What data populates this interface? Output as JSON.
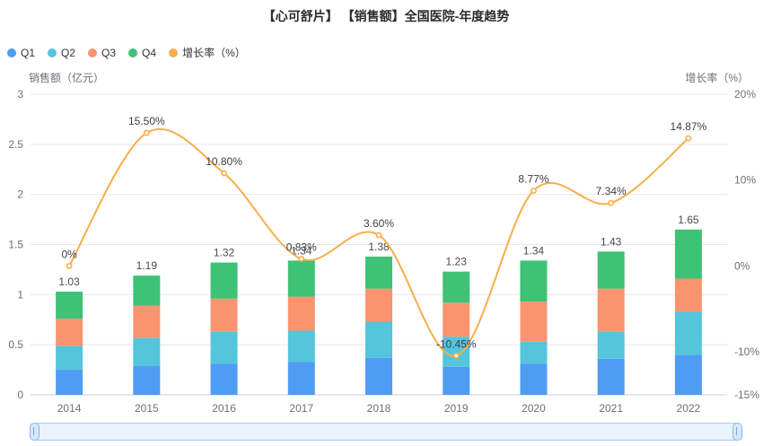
{
  "title": "【心可舒片】 【销售额】全国医院-年度趋势",
  "legend": [
    {
      "label": "Q1",
      "color": "#4F9CF4"
    },
    {
      "label": "Q2",
      "color": "#54C5DB"
    },
    {
      "label": "Q3",
      "color": "#F9946F"
    },
    {
      "label": "Q4",
      "color": "#3EC276"
    },
    {
      "label": "增长率（%）",
      "color": "#F8AE4A"
    }
  ],
  "left_axis": {
    "name": "销售额（亿元）",
    "min": 0,
    "max": 3,
    "ticks": [
      {
        "label": "3",
        "value": 3
      },
      {
        "label": "2.5",
        "value": 2.5
      },
      {
        "label": "2",
        "value": 2
      },
      {
        "label": "1.5",
        "value": 1.5
      },
      {
        "label": "1",
        "value": 1
      },
      {
        "label": "0.5",
        "value": 0.5
      },
      {
        "label": "0",
        "value": 0
      }
    ]
  },
  "right_axis": {
    "name": "增长率（%）",
    "min": -15,
    "max": 20,
    "ticks": [
      {
        "label": "20%",
        "value": 20
      },
      {
        "label": "10%",
        "value": 10
      },
      {
        "label": "0%",
        "value": 0
      },
      {
        "label": "-10%",
        "value": -10
      },
      {
        "label": "-15%",
        "value": -15
      }
    ]
  },
  "chart_data": {
    "type": "bar",
    "subtype": "stacked-bars-with-line",
    "categories": [
      "2014",
      "2015",
      "2016",
      "2017",
      "2018",
      "2019",
      "2020",
      "2021",
      "2022"
    ],
    "series": [
      {
        "name": "Q1",
        "type": "bar",
        "color": "#4F9CF4",
        "values": [
          0.25,
          0.29,
          0.31,
          0.33,
          0.37,
          0.28,
          0.31,
          0.36,
          0.4
        ]
      },
      {
        "name": "Q2",
        "type": "bar",
        "color": "#54C5DB",
        "values": [
          0.24,
          0.28,
          0.32,
          0.31,
          0.36,
          0.3,
          0.22,
          0.27,
          0.43
        ]
      },
      {
        "name": "Q3",
        "type": "bar",
        "color": "#F9946F",
        "values": [
          0.27,
          0.32,
          0.33,
          0.34,
          0.33,
          0.34,
          0.4,
          0.43,
          0.33
        ]
      },
      {
        "name": "Q4",
        "type": "bar",
        "color": "#3EC276",
        "values": [
          0.27,
          0.3,
          0.36,
          0.36,
          0.32,
          0.31,
          0.41,
          0.37,
          0.49
        ]
      },
      {
        "name": "增长率（%）",
        "type": "line",
        "axis": "right",
        "color": "#F8AE4A",
        "values": [
          0,
          15.5,
          10.8,
          0.83,
          3.6,
          -10.45,
          8.77,
          7.34,
          14.87
        ],
        "labels": [
          "0%",
          "15.50%",
          "10.80%",
          "0.83%",
          "3.60%",
          "-10.45%",
          "8.77%",
          "7.34%",
          "14.87%"
        ]
      }
    ],
    "totals": [
      1.03,
      1.19,
      1.32,
      1.34,
      1.38,
      1.23,
      1.34,
      1.43,
      1.65
    ],
    "total_labels": [
      "1.03",
      "1.19",
      "1.32",
      "1.34",
      "1.38",
      "1.23",
      "1.34",
      "1.43",
      "1.65"
    ],
    "title": "【心可舒片】 【销售额】全国医院-年度趋势",
    "xlabel": "",
    "ylabel": "销售额（亿元）",
    "y2label": "增长率（%）",
    "ylim": [
      0,
      3
    ],
    "y2lim": [
      -15,
      20
    ],
    "grid": true,
    "legend_position": "top-left"
  }
}
